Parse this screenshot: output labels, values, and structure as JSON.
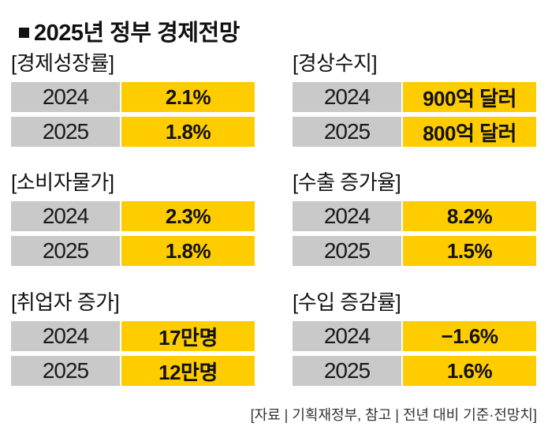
{
  "title": "2025년 정부 경제전망",
  "source": "[자료 | 기획재정부, 참고 | 전년 대비 기준·전망치]",
  "colors": {
    "year_cell": "#c9c9c9",
    "value_cell": "#ffcc00"
  },
  "chart_data": {
    "type": "table",
    "panels": [
      {
        "title": "[경제성장률]",
        "rows": [
          {
            "year": "2024",
            "value": "2.1%"
          },
          {
            "year": "2025",
            "value": "1.8%"
          }
        ]
      },
      {
        "title": "[경상수지]",
        "rows": [
          {
            "year": "2024",
            "value": "900억 달러"
          },
          {
            "year": "2025",
            "value": "800억 달러"
          }
        ]
      },
      {
        "title": "[소비자물가]",
        "rows": [
          {
            "year": "2024",
            "value": "2.3%"
          },
          {
            "year": "2025",
            "value": "1.8%"
          }
        ]
      },
      {
        "title": "[수출 증가율]",
        "rows": [
          {
            "year": "2024",
            "value": "8.2%"
          },
          {
            "year": "2025",
            "value": "1.5%"
          }
        ]
      },
      {
        "title": "[취업자 증가]",
        "rows": [
          {
            "year": "2024",
            "value": "17만명"
          },
          {
            "year": "2025",
            "value": "12만명"
          }
        ]
      },
      {
        "title": "[수입 증감률]",
        "rows": [
          {
            "year": "2024",
            "value": "−1.6%"
          },
          {
            "year": "2025",
            "value": "1.6%"
          }
        ]
      }
    ]
  }
}
